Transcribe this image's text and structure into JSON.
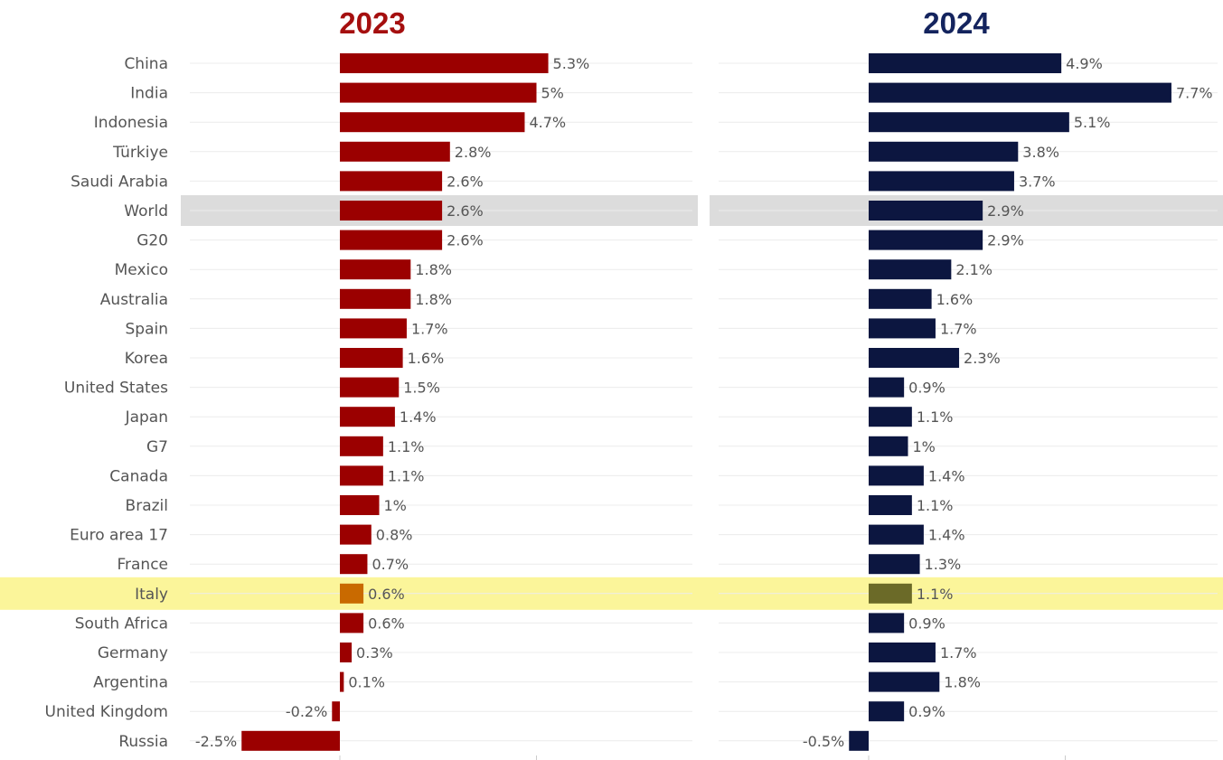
{
  "chart_data": {
    "type": "bar",
    "orientation": "horizontal",
    "categories": [
      "China",
      "India",
      "Indonesia",
      "Türkiye",
      "Saudi Arabia",
      "World",
      "G20",
      "Mexico",
      "Australia",
      "Spain",
      "Korea",
      "United States",
      "Japan",
      "G7",
      "Canada",
      "Brazil",
      "Euro area 17",
      "France",
      "Italy",
      "South Africa",
      "Germany",
      "Argentina",
      "United Kingdom",
      "Russia"
    ],
    "highlighted": {
      "World": "#dcdcdc",
      "Italy": "#fbf59a"
    },
    "series": [
      {
        "name": "2023",
        "color": "#9b0000",
        "highlight_color": "#c96a00",
        "values": [
          5.3,
          5,
          4.7,
          2.8,
          2.6,
          2.6,
          2.6,
          1.8,
          1.8,
          1.7,
          1.6,
          1.5,
          1.4,
          1.1,
          1.1,
          1,
          0.8,
          0.7,
          0.6,
          0.6,
          0.3,
          0.1,
          -0.2,
          -2.5
        ],
        "labels": [
          "5.3%",
          "5%",
          "4.7%",
          "2.8%",
          "2.6%",
          "2.6%",
          "2.6%",
          "1.8%",
          "1.8%",
          "1.7%",
          "1.6%",
          "1.5%",
          "1.4%",
          "1.1%",
          "1.1%",
          "1%",
          "0.8%",
          "0.7%",
          "0.6%",
          "0.6%",
          "0.3%",
          "0.1%",
          "-0.2%",
          "-2.5%"
        ]
      },
      {
        "name": "2024",
        "color": "#0c1640",
        "highlight_color": "#6b6a28",
        "values": [
          4.9,
          7.7,
          5.1,
          3.8,
          3.7,
          2.9,
          2.9,
          2.1,
          1.6,
          1.7,
          2.3,
          0.9,
          1.1,
          1,
          1.4,
          1.1,
          1.4,
          1.3,
          1.1,
          0.9,
          1.7,
          1.8,
          0.9,
          -0.5
        ],
        "labels": [
          "4.9%",
          "7.7%",
          "5.1%",
          "3.8%",
          "3.7%",
          "2.9%",
          "2.9%",
          "2.1%",
          "1.6%",
          "1.7%",
          "2.3%",
          "0.9%",
          "1.1%",
          "1%",
          "1.4%",
          "1.1%",
          "1.4%",
          "1.3%",
          "1.1%",
          "0.9%",
          "1.7%",
          "1.8%",
          "0.9%",
          "-0.5%"
        ]
      }
    ],
    "panel_titles": [
      "2023",
      "2024"
    ],
    "title_colors": [
      "#a50f0f",
      "#14245e"
    ],
    "unit": "%",
    "grid": true,
    "legend": "none"
  }
}
